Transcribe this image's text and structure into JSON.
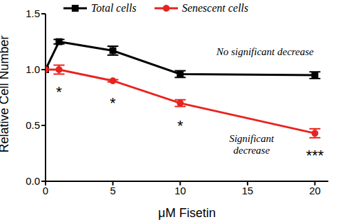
{
  "chart_data": {
    "type": "line",
    "x_label": "μM Fisetin",
    "y_label": "Relative Cell Number",
    "x": [
      0,
      1,
      5,
      10,
      20
    ],
    "xlim": [
      0,
      21
    ],
    "xticks": [
      0,
      5,
      10,
      15,
      20
    ],
    "ylim": [
      0,
      1.5
    ],
    "yticks": [
      {
        "value": 0,
        "label": "0.0"
      },
      {
        "value": 0.5,
        "label": "0.5"
      },
      {
        "value": 1,
        "label": "1.0"
      },
      {
        "value": 1.5,
        "label": "1.5"
      }
    ],
    "grid": false,
    "legend": "top",
    "series": [
      {
        "name": "Total cells",
        "color": "#000000",
        "marker": "square",
        "values": [
          1.0,
          1.25,
          1.17,
          0.96,
          0.95
        ],
        "errors": [
          0,
          0.02,
          0.04,
          0.03,
          0.03
        ]
      },
      {
        "name": "Senescent cells",
        "color": "#e8231f",
        "marker": "circle",
        "values": [
          1.0,
          1.0,
          0.9,
          0.7,
          0.43
        ],
        "errors": [
          0,
          0.04,
          0.01,
          0.03,
          0.04
        ],
        "significance": [
          null,
          "*",
          "*",
          "*",
          "***"
        ]
      }
    ],
    "annotations": [
      {
        "text": "No significant decrease",
        "x": 16.3,
        "y": 1.13
      },
      {
        "text": "Significant\ndecrease",
        "x": 15.3,
        "y": 0.35
      }
    ]
  }
}
